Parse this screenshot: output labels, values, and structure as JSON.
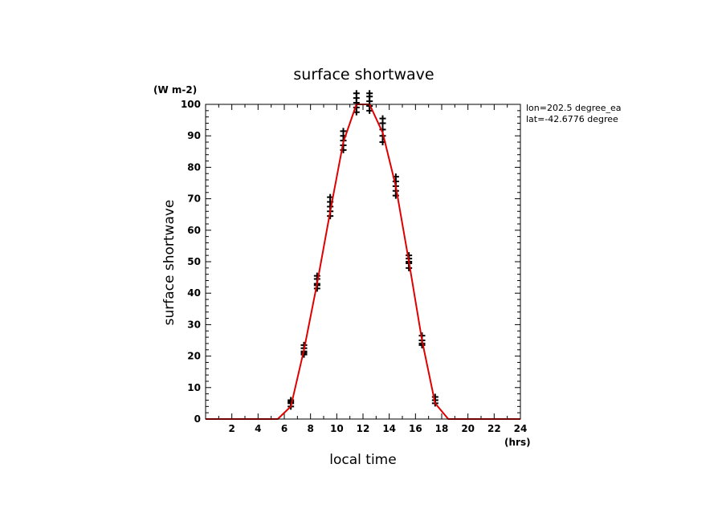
{
  "chart_data": {
    "type": "line",
    "title": "surface shortwave",
    "xlabel": "local time",
    "ylabel": "surface shortwave",
    "x_unit": "(hrs)",
    "y_unit": "(W m-2)",
    "xlim": [
      0,
      24
    ],
    "ylim": [
      0,
      100
    ],
    "x_ticks": [
      2,
      4,
      6,
      8,
      10,
      12,
      14,
      16,
      18,
      20,
      22,
      24
    ],
    "y_ticks": [
      0,
      10,
      20,
      30,
      40,
      50,
      60,
      70,
      80,
      90,
      100
    ],
    "annotations": [
      "lon=202.5 degree_ea",
      "lat=-42.6776 degree"
    ],
    "grid": false,
    "colors": {
      "line": "#e00000",
      "markers": "#000000"
    },
    "series": [
      {
        "type": "line",
        "x": [
          0,
          0.5,
          1.5,
          2.5,
          3.5,
          4.5,
          5.5,
          6.5,
          7.5,
          8.5,
          9.5,
          10.5,
          11.5,
          12.5,
          13.5,
          14.5,
          15.5,
          16.5,
          17.5,
          18.5,
          19.5,
          20.5,
          21.5,
          22.5,
          23.5,
          24
        ],
        "y": [
          0,
          0,
          0,
          0,
          0,
          0,
          0,
          4,
          22,
          43,
          66,
          88,
          100,
          100,
          91,
          74,
          50,
          25,
          5,
          0,
          0,
          0,
          0,
          0,
          0,
          0
        ]
      },
      {
        "type": "scatter",
        "marker": "+",
        "x": [
          6.5,
          6.5,
          6.5,
          6.5,
          7.5,
          7.5,
          7.5,
          7.5,
          7.5,
          8.5,
          8.5,
          8.5,
          8.5,
          8.5,
          9.5,
          9.5,
          9.5,
          9.5,
          9.5,
          10.5,
          10.5,
          10.5,
          10.5,
          10.5,
          11.5,
          11.5,
          11.5,
          11.5,
          11.5,
          12.5,
          12.5,
          12.5,
          12.5,
          12.5,
          13.5,
          13.5,
          13.5,
          13.5,
          13.5,
          14.5,
          14.5,
          14.5,
          14.5,
          14.5,
          15.5,
          15.5,
          15.5,
          15.5,
          15.5,
          16.5,
          16.5,
          16.5,
          16.5,
          17.5,
          17.5,
          17.5
        ],
        "y": [
          4,
          5,
          6,
          5.5,
          20.5,
          21.5,
          22.5,
          23.5,
          21,
          41.5,
          43,
          44.5,
          45.5,
          42.5,
          64.5,
          66,
          67.5,
          69,
          70.5,
          85.5,
          87,
          88.5,
          90,
          91.5,
          97.5,
          99,
          100.5,
          102,
          103.5,
          98,
          99.5,
          101,
          102.5,
          103.5,
          88,
          90,
          92,
          94,
          95.5,
          71,
          72.5,
          74,
          75.5,
          77,
          48,
          49.5,
          51,
          52,
          50,
          23.5,
          25,
          26.5,
          24,
          5,
          6,
          7
        ]
      }
    ]
  }
}
